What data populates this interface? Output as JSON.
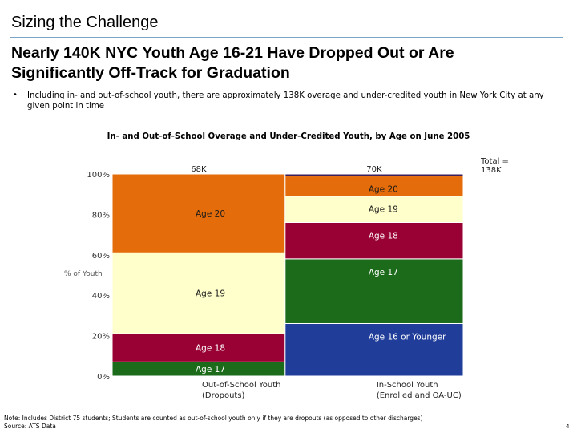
{
  "slide": {
    "title": "Sizing the Challenge",
    "headline_line1": "Nearly 140K NYC Youth Age 16-21 Have Dropped Out or Are",
    "headline_line2": "Significantly Off-Track for Graduation",
    "bullet_symbol": "•",
    "bullet_text": "Including in- and out-of-school youth, there are approximately 138K overage and under-credited youth in New York City at any given point in time",
    "footnote_line1": "Note: Includes District 75 students; Students are counted as out-of-school youth only if they are dropouts (as opposed to other discharges)",
    "footnote_line2": "Source: ATS Data",
    "page_number": "4"
  },
  "chart_data": {
    "type": "marimekko",
    "title": "In- and Out-of-School Overage and Under-Credited Youth, by Age on June 2005",
    "ylabel": "% of Youth",
    "ylim": [
      0,
      100
    ],
    "yticks": [
      "0%",
      "20%",
      "40%",
      "60%",
      "80%",
      "100%"
    ],
    "total_label": "Total =\n138K",
    "colors": {
      "age21": "#3a1f5c",
      "age20": "#e46c0a",
      "age19": "#ffffcc",
      "age18": "#990033",
      "age17": "#1b6b1b",
      "age16": "#1f3d99"
    },
    "columns": [
      {
        "name": "Out-of-School Youth",
        "sub": "(Dropouts)",
        "total_label": "68K",
        "total": 68,
        "segments": [
          {
            "label": "Age 17",
            "value": 7,
            "color_key": "age17"
          },
          {
            "label": "Age 18",
            "value": 14,
            "color_key": "age18"
          },
          {
            "label": "Age 19",
            "value": 40,
            "color_key": "age19"
          },
          {
            "label": "Age 20",
            "value": 39,
            "color_key": "age20"
          }
        ]
      },
      {
        "name": "In-School Youth",
        "sub": "(Enrolled and OA-UC)",
        "total_label": "70K",
        "total": 70,
        "segments": [
          {
            "label": "Age 16 or Younger",
            "value": 26,
            "color_key": "age16"
          },
          {
            "label": "Age 17",
            "value": 32,
            "color_key": "age17"
          },
          {
            "label": "Age 18",
            "value": 18,
            "color_key": "age18"
          },
          {
            "label": "Age 19",
            "value": 13,
            "color_key": "age19"
          },
          {
            "label": "Age 20",
            "value": 10,
            "color_key": "age20"
          },
          {
            "label": "",
            "value": 1,
            "color_key": "age21"
          }
        ]
      }
    ]
  }
}
